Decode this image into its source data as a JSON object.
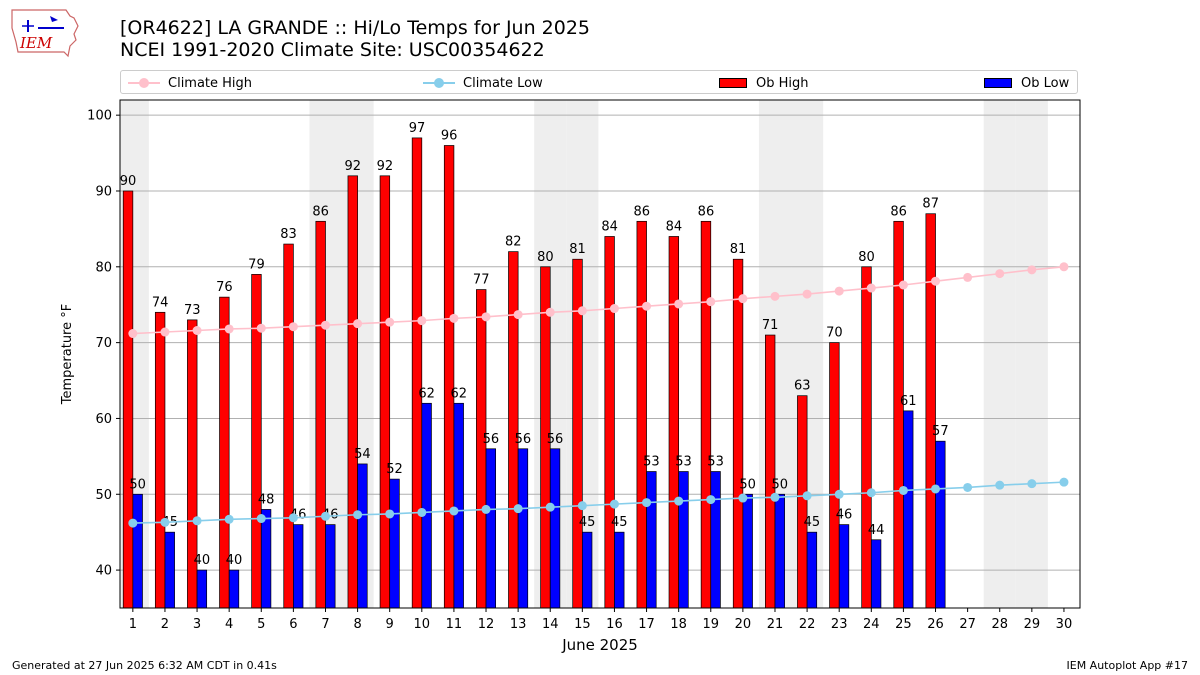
{
  "header": {
    "title_line1": "[OR4622] LA GRANDE :: Hi/Lo Temps for Jun 2025",
    "title_line2": "NCEI 1991-2020 Climate Site: USC00354622"
  },
  "logo": {
    "text": "IEM",
    "color": "#cc0000"
  },
  "legend": {
    "climate_high": "Climate High",
    "climate_low": "Climate Low",
    "ob_high": "Ob High",
    "ob_low": "Ob Low"
  },
  "footer": {
    "generated": "Generated at 27 Jun 2025 6:32 AM CDT in 0.41s",
    "app": "IEM Autoplot App #17"
  },
  "colors": {
    "ob_high": "#ff0000",
    "ob_low": "#0000ff",
    "climate_high": "#ffc0cb",
    "climate_low": "#87ceeb",
    "weekend_shade": "#eeeeee",
    "grid": "#b0b0b0"
  },
  "chart_data": {
    "type": "bar",
    "xlabel": "June 2025",
    "ylabel": "Temperature °F",
    "ylim": [
      35,
      102
    ],
    "yticks": [
      40,
      50,
      60,
      70,
      80,
      90,
      100
    ],
    "grid": "horizontal",
    "legend_position": "top",
    "days": [
      1,
      2,
      3,
      4,
      5,
      6,
      7,
      8,
      9,
      10,
      11,
      12,
      13,
      14,
      15,
      16,
      17,
      18,
      19,
      20,
      21,
      22,
      23,
      24,
      25,
      26,
      27,
      28,
      29,
      30
    ],
    "shaded_days": [
      1,
      7,
      8,
      14,
      15,
      21,
      22,
      28,
      29
    ],
    "ob_high": [
      90,
      74,
      73,
      76,
      79,
      83,
      86,
      92,
      92,
      97,
      96,
      77,
      82,
      80,
      81,
      84,
      86,
      84,
      86,
      81,
      71,
      63,
      70,
      80,
      86,
      87
    ],
    "ob_low": [
      50,
      45,
      40,
      40,
      48,
      46,
      46,
      54,
      52,
      62,
      62,
      56,
      56,
      56,
      45,
      45,
      53,
      53,
      53,
      50,
      50,
      45,
      46,
      44,
      61,
      57
    ],
    "climate_high": [
      71.2,
      71.4,
      71.6,
      71.8,
      71.9,
      72.1,
      72.3,
      72.5,
      72.7,
      72.9,
      73.2,
      73.4,
      73.7,
      74.0,
      74.2,
      74.5,
      74.8,
      75.1,
      75.4,
      75.8,
      76.1,
      76.4,
      76.8,
      77.2,
      77.6,
      78.1,
      78.6,
      79.1,
      79.6,
      80.0
    ],
    "climate_low": [
      46.2,
      46.3,
      46.5,
      46.7,
      46.8,
      46.9,
      47.1,
      47.3,
      47.4,
      47.6,
      47.8,
      48.0,
      48.1,
      48.3,
      48.5,
      48.7,
      48.9,
      49.1,
      49.3,
      49.5,
      49.6,
      49.8,
      50.0,
      50.2,
      50.5,
      50.7,
      50.9,
      51.2,
      51.4,
      51.6
    ]
  }
}
